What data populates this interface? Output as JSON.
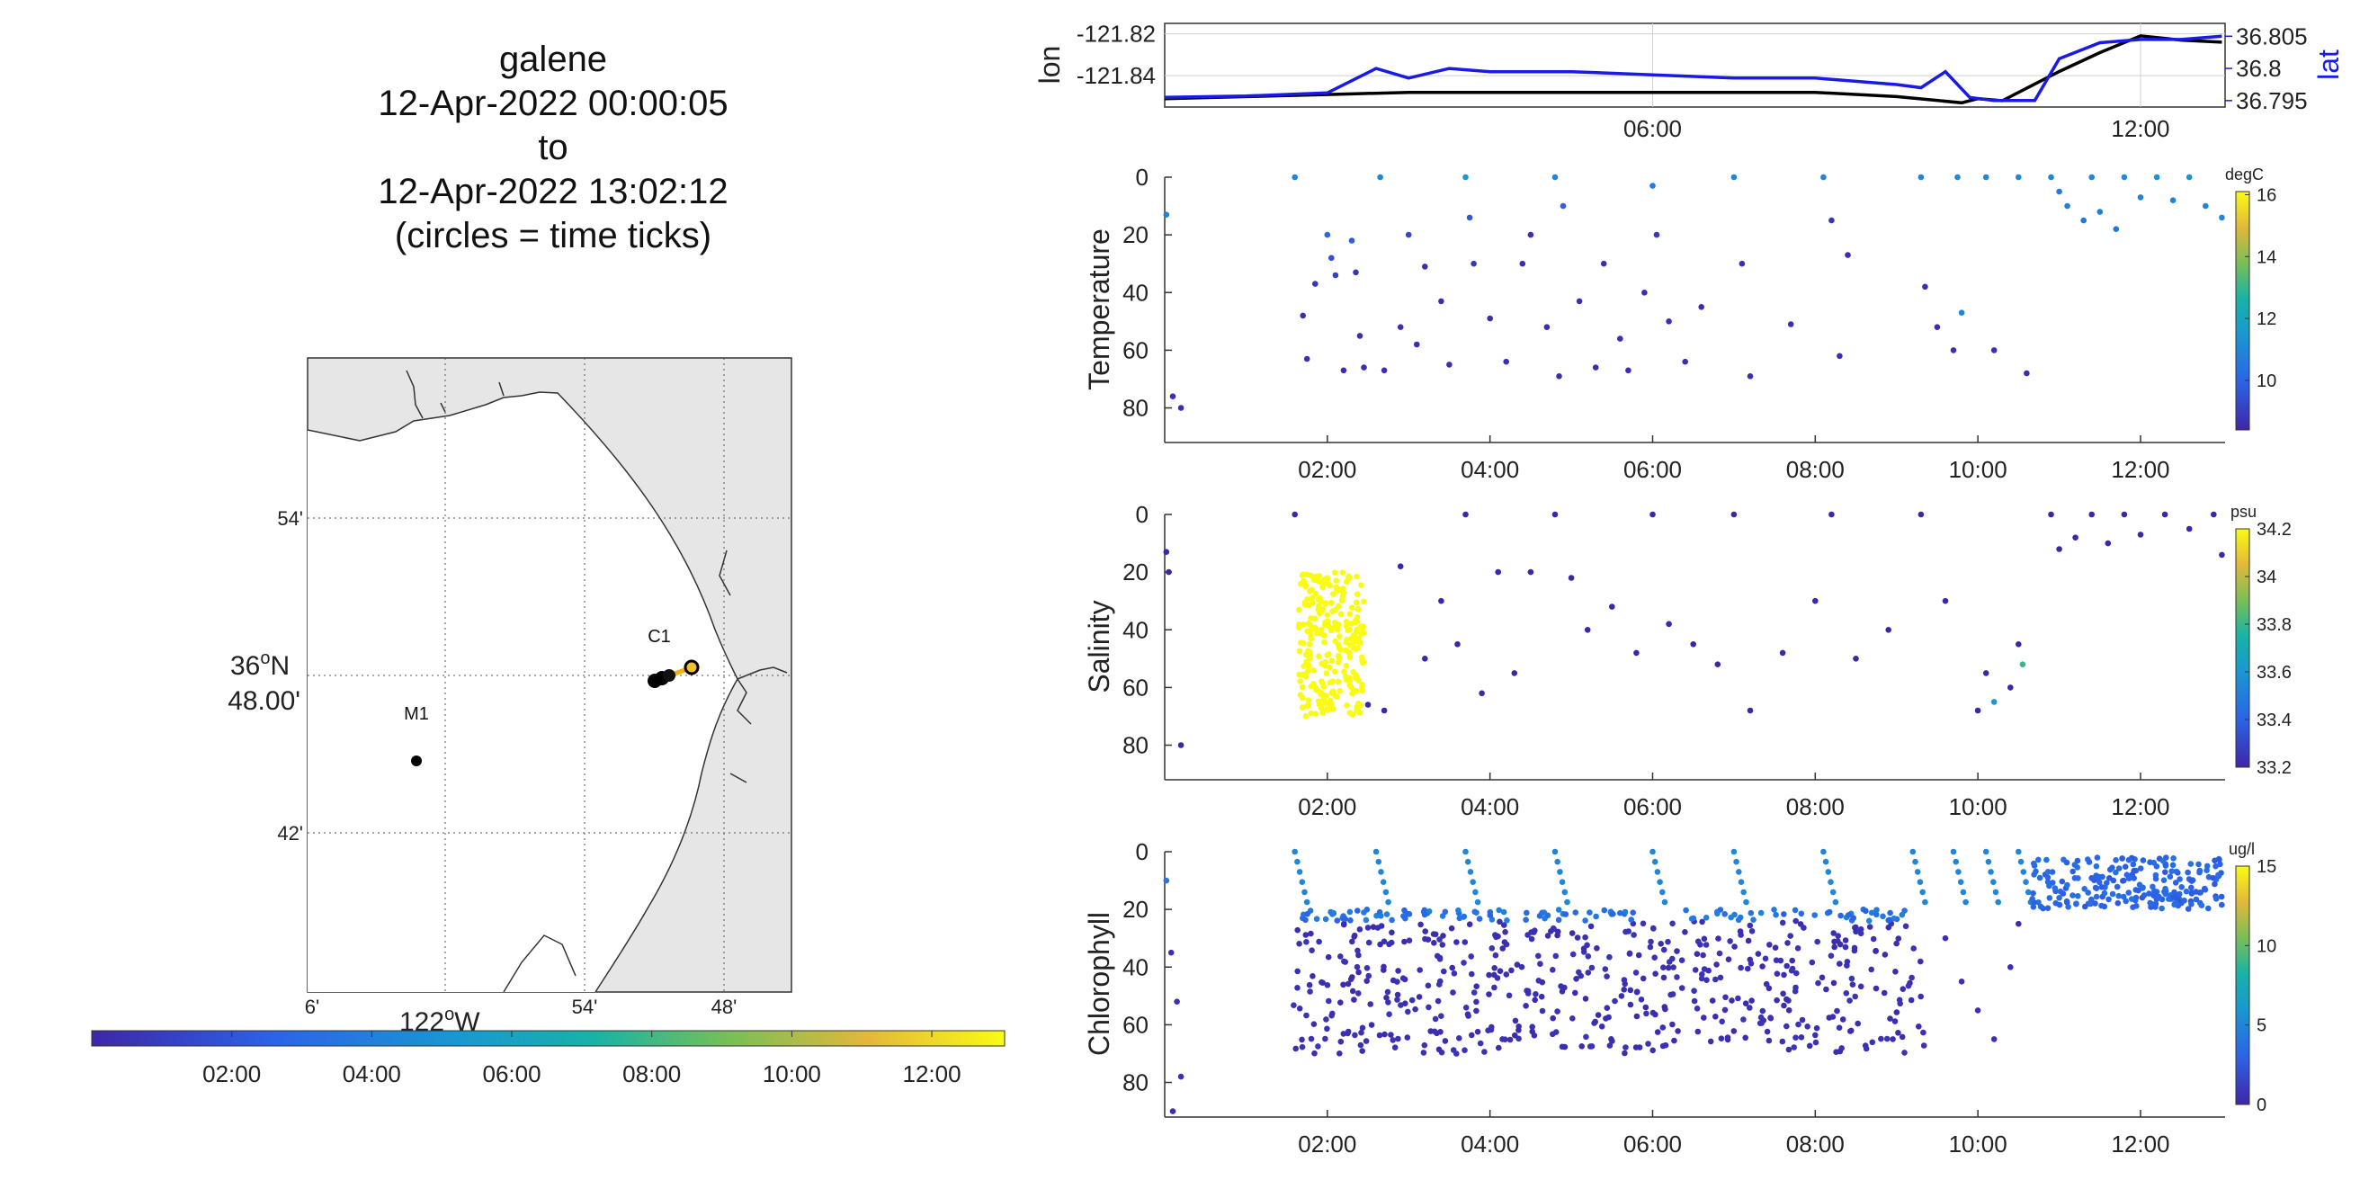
{
  "title": {
    "lines": [
      "galene",
      "12-Apr-2022 00:00:05",
      "to",
      "12-Apr-2022 13:02:12",
      "(circles = time ticks)"
    ]
  },
  "map": {
    "lat_ticks": [
      "54'",
      "42'"
    ],
    "lat_center_deg": "36",
    "lat_center_sup": "o",
    "lat_center_hemi": "N",
    "lat_center_min": "48.00'",
    "lon_ticks": [
      "6'",
      "54'",
      "48'"
    ],
    "lon_center_deg": "122",
    "lon_center_sup": "o",
    "lon_center_hemi": "W",
    "stations": [
      {
        "name": "M1",
        "lon": -122.03,
        "lat": 36.75
      },
      {
        "name": "C1",
        "lon": -121.85,
        "lat": 36.81
      }
    ],
    "colors": {
      "land": "#e6e6e6",
      "water": "#ffffff",
      "track_start": "#000000",
      "track_end": "#f5b800"
    },
    "time_colorbar_ticks": [
      "02:00",
      "04:00",
      "06:00",
      "08:00",
      "10:00",
      "12:00"
    ]
  },
  "chart_data": [
    {
      "type": "line",
      "title": "",
      "xlabel": "",
      "ylabel": "lon",
      "y2label": "lat",
      "x_ticks": [
        "06:00",
        "12:00"
      ],
      "xlim_hours": [
        0,
        13.04
      ],
      "ylim": [
        -121.855,
        -121.815
      ],
      "y_ticks": [
        "-121.82",
        "-121.84"
      ],
      "y_tick_values": [
        -121.82,
        -121.84
      ],
      "y2lim": [
        36.794,
        36.807
      ],
      "y2_ticks": [
        "36.805",
        "36.8",
        "36.795"
      ],
      "y2_tick_values": [
        36.805,
        36.8,
        36.795
      ],
      "series": [
        {
          "name": "lon",
          "color": "#000000",
          "axis": "left",
          "x": [
            0,
            1,
            2,
            3,
            4,
            5,
            6,
            7,
            8,
            9,
            9.8,
            10,
            10.3,
            10.6,
            11,
            11.5,
            12,
            12.5,
            13
          ],
          "y": [
            -121.851,
            -121.85,
            -121.849,
            -121.848,
            -121.848,
            -121.848,
            -121.848,
            -121.848,
            -121.848,
            -121.85,
            -121.853,
            -121.851,
            -121.852,
            -121.846,
            -121.838,
            -121.829,
            -121.821,
            -121.823,
            -121.824
          ]
        },
        {
          "name": "lat",
          "color": "#1a1ae6",
          "axis": "right",
          "x": [
            0,
            1,
            2,
            2.6,
            3,
            3.5,
            4,
            5,
            6,
            7,
            8,
            9,
            9.3,
            9.6,
            9.9,
            10.2,
            10.7,
            11,
            11.5,
            12,
            12.5,
            13
          ],
          "y": [
            36.7955,
            36.7957,
            36.7962,
            36.8,
            36.7985,
            36.8,
            36.7995,
            36.7995,
            36.799,
            36.7985,
            36.7985,
            36.7975,
            36.797,
            36.7995,
            36.7955,
            36.795,
            36.795,
            36.8015,
            36.804,
            36.8045,
            36.8045,
            36.805
          ]
        }
      ]
    },
    {
      "type": "scatter",
      "title": "",
      "ylabel": "Temperature",
      "colorbar_unit": "degC",
      "colorbar_ticks": [
        "16",
        "14",
        "12",
        "10"
      ],
      "colorbar_tick_values": [
        16,
        14,
        12,
        10
      ],
      "clim": [
        8.4,
        16.1
      ],
      "x_ticks": [
        "02:00",
        "04:00",
        "06:00",
        "08:00",
        "10:00",
        "12:00"
      ],
      "xlim_hours": [
        0,
        13.04
      ],
      "y_ticks": [
        "0",
        "20",
        "40",
        "60",
        "80"
      ],
      "ylim": [
        92,
        0
      ],
      "points": [
        [
          0.02,
          13,
          10.8
        ],
        [
          0.1,
          76,
          8.6
        ],
        [
          0.2,
          80,
          8.6
        ],
        [
          1.6,
          0,
          10.8
        ],
        [
          1.7,
          48,
          8.6
        ],
        [
          1.75,
          63,
          8.6
        ],
        [
          1.85,
          37,
          8.8
        ],
        [
          2.0,
          20,
          10
        ],
        [
          2.05,
          28,
          9.4
        ],
        [
          2.1,
          34,
          9
        ],
        [
          2.2,
          67,
          8.6
        ],
        [
          2.3,
          22,
          9.8
        ],
        [
          2.35,
          33,
          8.8
        ],
        [
          2.4,
          55,
          8.6
        ],
        [
          2.45,
          66,
          8.6
        ],
        [
          2.65,
          0,
          11
        ],
        [
          2.7,
          67,
          8.6
        ],
        [
          2.9,
          52,
          8.6
        ],
        [
          3.0,
          20,
          9.2
        ],
        [
          3.1,
          58,
          8.6
        ],
        [
          3.2,
          31,
          8.6
        ],
        [
          3.4,
          43,
          8.6
        ],
        [
          3.5,
          65,
          8.6
        ],
        [
          3.7,
          0,
          11.5
        ],
        [
          3.75,
          14,
          9.6
        ],
        [
          3.8,
          30,
          8.8
        ],
        [
          4.0,
          49,
          8.6
        ],
        [
          4.2,
          64,
          8.6
        ],
        [
          4.4,
          30,
          8.6
        ],
        [
          4.5,
          20,
          8.6
        ],
        [
          4.7,
          52,
          8.6
        ],
        [
          4.8,
          0,
          11
        ],
        [
          4.85,
          69,
          8.6
        ],
        [
          4.9,
          10,
          9.8
        ],
        [
          5.1,
          43,
          8.6
        ],
        [
          5.3,
          66,
          8.6
        ],
        [
          5.4,
          30,
          8.6
        ],
        [
          5.6,
          56,
          8.6
        ],
        [
          5.7,
          67,
          8.6
        ],
        [
          5.9,
          40,
          8.6
        ],
        [
          6.0,
          3,
          10.6
        ],
        [
          6.05,
          20,
          8.8
        ],
        [
          6.2,
          50,
          8.6
        ],
        [
          6.4,
          64,
          8.6
        ],
        [
          6.6,
          45,
          8.6
        ],
        [
          7.0,
          0,
          11
        ],
        [
          7.1,
          30,
          8.6
        ],
        [
          7.2,
          69,
          8.6
        ],
        [
          7.7,
          51,
          8.6
        ],
        [
          8.1,
          0,
          10.9
        ],
        [
          8.2,
          15,
          8.8
        ],
        [
          8.3,
          62,
          8.6
        ],
        [
          8.4,
          27,
          8.6
        ],
        [
          9.3,
          0,
          10.9
        ],
        [
          9.35,
          38,
          8.6
        ],
        [
          9.5,
          52,
          8.6
        ],
        [
          9.7,
          60,
          8.6
        ],
        [
          9.75,
          0,
          11.1
        ],
        [
          9.8,
          47,
          11
        ],
        [
          10.1,
          0,
          11
        ],
        [
          10.2,
          60,
          8.6
        ],
        [
          10.5,
          0,
          11
        ],
        [
          10.6,
          68,
          8.6
        ],
        [
          10.9,
          0,
          11
        ],
        [
          11.0,
          5,
          10.6
        ],
        [
          11.1,
          10,
          10.8
        ],
        [
          11.3,
          15,
          10.5
        ],
        [
          11.4,
          0,
          11
        ],
        [
          11.5,
          12,
          10.7
        ],
        [
          11.7,
          18,
          10.5
        ],
        [
          11.8,
          0,
          11.2
        ],
        [
          12.0,
          7,
          10.8
        ],
        [
          12.2,
          0,
          11.3
        ],
        [
          12.4,
          8,
          10.9
        ],
        [
          12.6,
          0,
          11.3
        ],
        [
          12.8,
          10,
          11
        ],
        [
          13.0,
          14,
          11
        ]
      ]
    },
    {
      "type": "scatter",
      "title": "",
      "ylabel": "Salinity",
      "colorbar_unit": "psu",
      "colorbar_ticks": [
        "34.2",
        "34",
        "33.8",
        "33.6",
        "33.4",
        "33.2"
      ],
      "colorbar_tick_values": [
        34.2,
        34,
        33.8,
        33.6,
        33.4,
        33.2
      ],
      "clim": [
        33.2,
        34.2
      ],
      "x_ticks": [
        "02:00",
        "04:00",
        "06:00",
        "08:00",
        "10:00",
        "12:00"
      ],
      "xlim_hours": [
        0,
        13.04
      ],
      "y_ticks": [
        "0",
        "20",
        "40",
        "60",
        "80"
      ],
      "ylim": [
        92,
        0
      ],
      "high_salinity_block": {
        "x_range": [
          1.65,
          2.45
        ],
        "depth_range": [
          20,
          70
        ],
        "value": 34.2
      },
      "points": [
        [
          0.02,
          13,
          33.2
        ],
        [
          0.05,
          20,
          33.2
        ],
        [
          0.2,
          80,
          33.2
        ],
        [
          1.6,
          0,
          33.2
        ],
        [
          2.5,
          66,
          33.2
        ],
        [
          2.7,
          68,
          33.2
        ],
        [
          2.9,
          18,
          33.2
        ],
        [
          3.2,
          50,
          33.2
        ],
        [
          3.4,
          30,
          33.2
        ],
        [
          3.6,
          45,
          33.2
        ],
        [
          3.7,
          0,
          33.2
        ],
        [
          3.9,
          62,
          33.2
        ],
        [
          4.1,
          20,
          33.2
        ],
        [
          4.3,
          55,
          33.2
        ],
        [
          4.5,
          20,
          33.2
        ],
        [
          4.8,
          0,
          33.2
        ],
        [
          5.0,
          22,
          33.2
        ],
        [
          5.2,
          40,
          33.2
        ],
        [
          5.5,
          32,
          33.2
        ],
        [
          5.8,
          48,
          33.2
        ],
        [
          6.0,
          0,
          33.2
        ],
        [
          6.2,
          38,
          33.2
        ],
        [
          6.5,
          45,
          33.2
        ],
        [
          6.8,
          52,
          33.2
        ],
        [
          7.0,
          0,
          33.2
        ],
        [
          7.2,
          68,
          33.2
        ],
        [
          7.6,
          48,
          33.2
        ],
        [
          8.0,
          30,
          33.2
        ],
        [
          8.2,
          0,
          33.2
        ],
        [
          8.5,
          50,
          33.2
        ],
        [
          8.9,
          40,
          33.2
        ],
        [
          9.3,
          0,
          33.2
        ],
        [
          9.6,
          30,
          33.2
        ],
        [
          10.0,
          68,
          33.2
        ],
        [
          10.1,
          55,
          33.2
        ],
        [
          10.2,
          65,
          33.6
        ],
        [
          10.4,
          60,
          33.2
        ],
        [
          10.5,
          45,
          33.2
        ],
        [
          10.55,
          52,
          33.8
        ],
        [
          10.9,
          0,
          33.2
        ],
        [
          11.0,
          12,
          33.2
        ],
        [
          11.2,
          8,
          33.2
        ],
        [
          11.4,
          0,
          33.2
        ],
        [
          11.6,
          10,
          33.2
        ],
        [
          11.8,
          0,
          33.2
        ],
        [
          12.0,
          7,
          33.2
        ],
        [
          12.3,
          0,
          33.2
        ],
        [
          12.6,
          5,
          33.2
        ],
        [
          12.9,
          0,
          33.2
        ],
        [
          13.0,
          14,
          33.2
        ]
      ]
    },
    {
      "type": "scatter",
      "title": "",
      "ylabel": "Chlorophyll",
      "colorbar_unit": "ug/l",
      "colorbar_ticks": [
        "15",
        "10",
        "5",
        "0"
      ],
      "colorbar_tick_values": [
        15,
        10,
        5,
        0
      ],
      "clim": [
        0,
        15
      ],
      "x_ticks": [
        "02:00",
        "04:00",
        "06:00",
        "08:00",
        "10:00",
        "12:00"
      ],
      "xlim_hours": [
        0,
        13.04
      ],
      "y_ticks": [
        "0",
        "20",
        "40",
        "60",
        "80"
      ],
      "ylim": [
        92,
        0
      ],
      "surface_value": 5,
      "subsurface_band": {
        "x_range": [
          1.55,
          9.35
        ],
        "depth_range": [
          20,
          70
        ],
        "value": 0.5
      },
      "upper_band": {
        "x_range": [
          1.55,
          9.35
        ],
        "depth_range": [
          20,
          24
        ],
        "value": 3.5
      },
      "late_cluster": {
        "x_range": [
          10.65,
          13.0
        ],
        "depth_range": [
          2,
          20
        ],
        "value": 3
      },
      "extra_points": [
        [
          0.02,
          10,
          4
        ],
        [
          0.08,
          35,
          0.5
        ],
        [
          0.15,
          52,
          0.5
        ],
        [
          0.2,
          78,
          0.5
        ],
        [
          0.1,
          90,
          0.5
        ],
        [
          9.6,
          30,
          0.5
        ],
        [
          9.8,
          45,
          0.5
        ],
        [
          10.0,
          55,
          0.5
        ],
        [
          10.2,
          65,
          0.5
        ],
        [
          10.4,
          40,
          0.5
        ],
        [
          10.5,
          25,
          0.5
        ]
      ]
    }
  ]
}
